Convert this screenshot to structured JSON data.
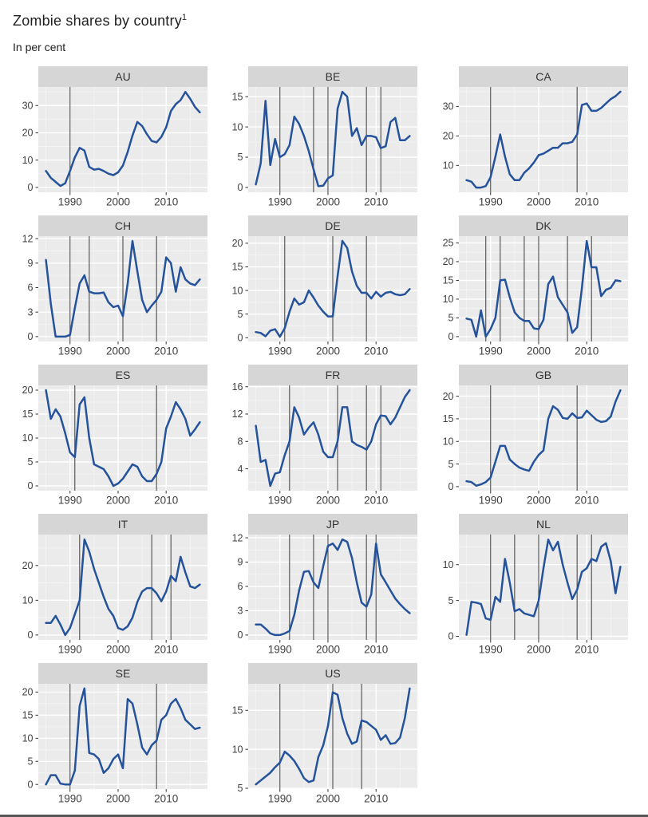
{
  "page": {
    "title": "Zombie shares by country",
    "title_superscript": "1",
    "subtitle": "In per cent"
  },
  "chart_data": {
    "type": "line",
    "layout": "faceted-small-multiples",
    "title": "Zombie shares by country",
    "subtitle": "In per cent",
    "unit": "per cent",
    "x_years": [
      1985,
      1986,
      1987,
      1988,
      1989,
      1990,
      1991,
      1992,
      1993,
      1994,
      1995,
      1996,
      1997,
      1998,
      1999,
      2000,
      2001,
      2002,
      2003,
      2004,
      2005,
      2006,
      2007,
      2008,
      2009,
      2010,
      2011,
      2012,
      2013,
      2014,
      2015,
      2016,
      2017
    ],
    "xlim": [
      1983.4,
      2018.6
    ],
    "x_ticks": [
      1990,
      2000,
      2010
    ],
    "x_minor_ticks": [
      1985,
      1995,
      2005,
      2015
    ],
    "grid": true,
    "colors": {
      "line": "#25539b",
      "event_line": "#4d4d4d",
      "panel_bg": "#ebebeb",
      "strip_bg": "#d6d6d6",
      "grid_major": "#ffffff",
      "grid_minor": "#f5f5f5",
      "tick_text": "#404040",
      "strip_text": "#333333"
    },
    "panels": [
      {
        "label": "AU",
        "y_ticks": [
          0,
          10,
          20,
          30
        ],
        "ylim": [
          -1.8,
          36.8
        ],
        "event_lines": [
          1990
        ],
        "values": [
          6,
          3.5,
          2,
          0.5,
          1.5,
          6,
          11,
          14.5,
          13.5,
          7.5,
          6.5,
          6.8,
          6,
          5,
          4.5,
          5.5,
          8,
          13,
          19,
          24,
          22.5,
          19.5,
          17,
          16.5,
          18.5,
          22,
          28,
          30.5,
          32,
          35,
          32.5,
          29.5,
          27.5
        ]
      },
      {
        "label": "BE",
        "y_ticks": [
          0,
          5,
          10,
          15
        ],
        "ylim": [
          -0.8,
          16.6
        ],
        "event_lines": [
          1990,
          1997,
          2000,
          2008,
          2011
        ],
        "values": [
          0.5,
          4,
          14.3,
          3.7,
          8,
          5,
          5.5,
          7,
          11.7,
          10.5,
          8.5,
          6,
          3,
          0.2,
          0.3,
          1.5,
          2,
          13,
          15.8,
          15,
          8.5,
          9.8,
          7,
          8.5,
          8.5,
          8.3,
          6.5,
          6.8,
          10.8,
          11.5,
          7.8,
          7.8,
          8.5
        ]
      },
      {
        "label": "CA",
        "y_ticks": [
          10,
          20,
          30
        ],
        "ylim": [
          0.9,
          36.6
        ],
        "event_lines": [
          1990,
          2008
        ],
        "values": [
          5,
          4.5,
          2.5,
          2.5,
          3,
          6,
          13,
          20.5,
          13,
          7,
          5,
          5,
          7.5,
          9,
          11,
          13.5,
          14,
          15,
          16,
          16,
          17.5,
          17.5,
          18,
          20.5,
          30.5,
          31,
          28.5,
          28.5,
          29.5,
          31,
          32.5,
          33.5,
          35
        ]
      },
      {
        "label": "CH",
        "y_ticks": [
          0,
          3,
          6,
          9,
          12
        ],
        "ylim": [
          -0.6,
          12.3
        ],
        "event_lines": [
          1990,
          1994,
          2001,
          2008
        ],
        "values": [
          9.4,
          4,
          0,
          0,
          0,
          0.2,
          3.5,
          6.5,
          7.5,
          5.5,
          5.3,
          5.3,
          5.4,
          4.2,
          3.6,
          3.8,
          2.5,
          6.5,
          11.7,
          8,
          4.5,
          3,
          3.8,
          4.5,
          5.5,
          9.7,
          9,
          5.5,
          8.5,
          7,
          6.5,
          6.3,
          7
        ]
      },
      {
        "label": "DE",
        "y_ticks": [
          0,
          5,
          10,
          15,
          20
        ],
        "ylim": [
          -0.8,
          21.5
        ],
        "event_lines": [
          1991,
          2001,
          2008
        ],
        "values": [
          1.2,
          1,
          0.3,
          1.5,
          1.8,
          0.2,
          2,
          5.5,
          8.3,
          7,
          7.5,
          10,
          8.5,
          6.8,
          5.5,
          4.5,
          4.5,
          13,
          20.5,
          19,
          14,
          11,
          9.5,
          9.5,
          8.3,
          9.7,
          8.7,
          9.5,
          9.7,
          9.2,
          9,
          9.2,
          10.3
        ]
      },
      {
        "label": "DK",
        "y_ticks": [
          0,
          5,
          10,
          15,
          20,
          25
        ],
        "ylim": [
          -1.3,
          26.8
        ],
        "event_lines": [
          1989,
          1992,
          1997,
          2000,
          2006,
          2011
        ],
        "values": [
          4.8,
          4.5,
          0,
          7,
          0,
          2,
          5,
          15,
          15.2,
          10.5,
          6.5,
          5,
          4.2,
          4.2,
          2.2,
          2,
          4.5,
          14,
          16,
          10.5,
          8.5,
          6.5,
          1,
          2.5,
          13,
          25.5,
          18.5,
          18.5,
          10.8,
          12.5,
          13,
          15,
          14.8
        ]
      },
      {
        "label": "ES",
        "y_ticks": [
          0,
          5,
          10,
          15,
          20
        ],
        "ylim": [
          -1,
          21
        ],
        "event_lines": [
          1991,
          2008
        ],
        "values": [
          20,
          14,
          16,
          14.5,
          11,
          7,
          6,
          17,
          18.5,
          10,
          4.5,
          4,
          3.5,
          2,
          0,
          0.5,
          1.5,
          3,
          4.5,
          4,
          2,
          1,
          1,
          2.5,
          5,
          12,
          14.5,
          17.5,
          16,
          14,
          10.5,
          11.8,
          13.3
        ]
      },
      {
        "label": "FR",
        "y_ticks": [
          4,
          8,
          12,
          16
        ],
        "ylim": [
          0.8,
          16.2
        ],
        "event_lines": [
          1992,
          2002,
          2008,
          2011
        ],
        "values": [
          10.3,
          5,
          5.3,
          1.5,
          3.3,
          3.5,
          6,
          8,
          13,
          11.5,
          9,
          10,
          10.8,
          9,
          6.5,
          5.7,
          5.7,
          8,
          13,
          13,
          8,
          7.5,
          7.2,
          6.8,
          8,
          10.5,
          11.8,
          11.7,
          10.5,
          11.5,
          13,
          14.5,
          15.5
        ]
      },
      {
        "label": "GB",
        "y_ticks": [
          0,
          5,
          10,
          15,
          20
        ],
        "ylim": [
          -0.9,
          22.4
        ],
        "event_lines": [
          1990,
          2008
        ],
        "values": [
          1.2,
          1,
          0.2,
          0.5,
          1,
          2,
          5.5,
          9,
          9,
          6,
          5,
          4.2,
          3.8,
          3.5,
          5.5,
          7,
          8,
          15,
          17.8,
          17,
          15.2,
          15,
          16.2,
          15.2,
          15.3,
          16.8,
          15.8,
          14.8,
          14.3,
          14.5,
          15.5,
          18.8,
          21.3
        ]
      },
      {
        "label": "IT",
        "y_ticks": [
          0,
          10,
          20
        ],
        "ylim": [
          -1.4,
          28.9
        ],
        "event_lines": [
          1992,
          2007,
          2011
        ],
        "values": [
          3.5,
          3.5,
          5.5,
          3,
          0,
          2,
          6,
          10,
          27.5,
          24,
          19,
          15,
          11,
          7.5,
          5.5,
          2,
          1.5,
          2.5,
          5,
          9.5,
          12.5,
          13.5,
          13.5,
          12,
          9.7,
          12.5,
          17,
          15.5,
          22.5,
          18,
          14,
          13.5,
          14.5
        ]
      },
      {
        "label": "JP",
        "y_ticks": [
          0,
          3,
          6,
          9,
          12
        ],
        "ylim": [
          -0.6,
          12.4
        ],
        "event_lines": [
          1992,
          1997,
          2000,
          2008,
          2010
        ],
        "values": [
          1.3,
          1.3,
          0.8,
          0.2,
          0,
          0,
          0.2,
          0.5,
          2.5,
          5.5,
          7.8,
          7.9,
          6.5,
          5.8,
          8.5,
          11,
          11.3,
          10.5,
          11.8,
          11.5,
          9.5,
          6.5,
          4,
          3.5,
          5,
          11.3,
          7.5,
          6.5,
          5.5,
          4.5,
          3.8,
          3.2,
          2.7
        ]
      },
      {
        "label": "NL",
        "y_ticks": [
          0,
          5,
          10
        ],
        "ylim": [
          -0.5,
          14.2
        ],
        "event_lines": [
          1990,
          1995,
          2000,
          2008,
          2011
        ],
        "values": [
          0.2,
          4.8,
          4.7,
          4.5,
          2.5,
          2.3,
          5.5,
          4.8,
          10.8,
          7.5,
          3.5,
          3.8,
          3.2,
          3,
          2.8,
          5,
          9.5,
          13.5,
          12,
          13.2,
          10,
          7.5,
          5.2,
          6.5,
          9,
          9.5,
          10.8,
          10.5,
          12.5,
          13,
          10.5,
          6,
          9.7
        ]
      },
      {
        "label": "SE",
        "y_ticks": [
          0,
          5,
          10,
          15,
          20
        ],
        "ylim": [
          -1,
          21.8
        ],
        "event_lines": [
          1990,
          2008
        ],
        "values": [
          0,
          2,
          2,
          0.2,
          0,
          0,
          3,
          17,
          20.8,
          6.8,
          6.5,
          5.5,
          2.5,
          3.5,
          5.5,
          6.5,
          3.5,
          18.5,
          17.5,
          13,
          8,
          6.5,
          8.5,
          9.5,
          14,
          15,
          17.5,
          18.5,
          16.5,
          14,
          13,
          12,
          12.3
        ]
      },
      {
        "label": "US",
        "y_ticks": [
          5,
          10,
          15
        ],
        "ylim": [
          4.9,
          18.4
        ],
        "event_lines": [
          1990,
          2001,
          2007
        ],
        "values": [
          5.5,
          6,
          6.5,
          7,
          7.7,
          8.3,
          9.7,
          9.2,
          8.5,
          7.5,
          6.3,
          5.8,
          6,
          9,
          10.5,
          13,
          17.3,
          17,
          14,
          12,
          10.7,
          11,
          13.7,
          13.5,
          13,
          12.5,
          11.2,
          11.8,
          10.7,
          10.8,
          11.5,
          14,
          17.8
        ]
      }
    ]
  }
}
